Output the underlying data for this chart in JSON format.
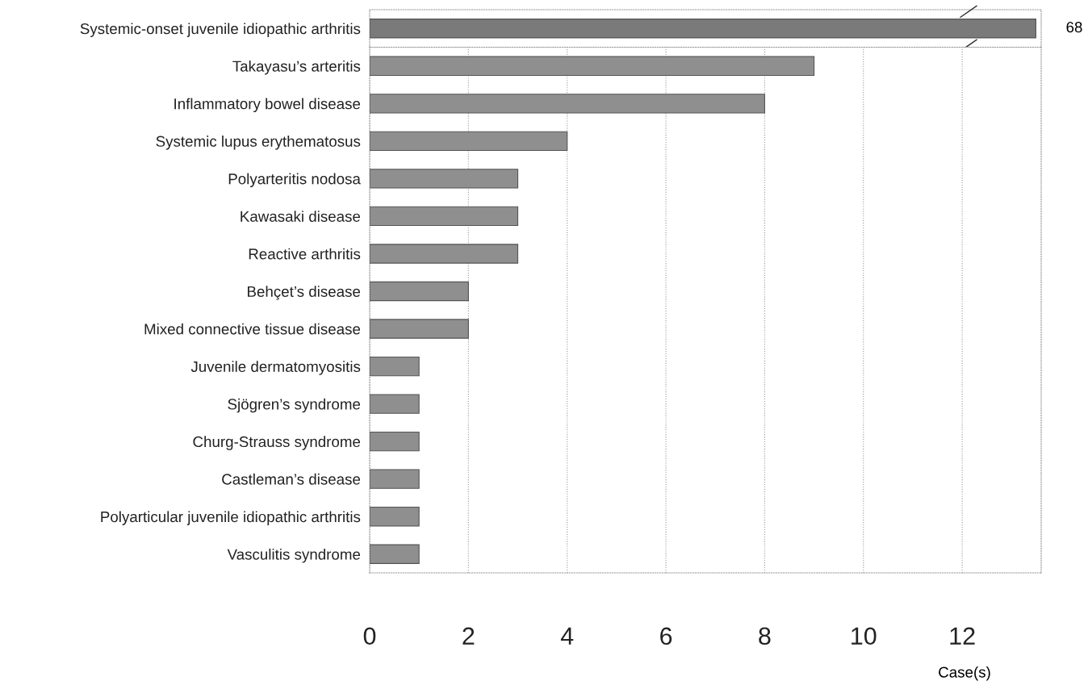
{
  "chart_data": [
    {
      "type": "bar",
      "orientation": "horizontal",
      "categories": [
        "Systemic-onset juvenile idiopathic arthritis"
      ],
      "values": [
        68
      ],
      "value_labels": [
        "68"
      ],
      "colors": [
        "#7a7a7a"
      ],
      "tick_labels": "y"
    },
    {
      "type": "bar",
      "orientation": "horizontal",
      "xlabel": "Case(s)",
      "categories": [
        "Takayasu’s arteritis",
        "Inflammatory bowel disease",
        "Systemic lupus erythematosus",
        "Polyarteritis nodosa",
        "Kawasaki disease",
        "Reactive arthritis",
        "Behçet’s disease",
        "Mixed connective tissue disease",
        "Juvenile dermatomyositis",
        "Sjögren’s syndrome",
        "Churg-Strauss syndrome",
        "Castleman’s disease",
        "Polyarticular juvenile idiopathic arthritis",
        "Vasculitis syndrome"
      ],
      "values": [
        9,
        8,
        4,
        3,
        3,
        3,
        2,
        2,
        1,
        1,
        1,
        1,
        1,
        1
      ],
      "colors": [
        "#8f8f8f",
        "#8f8f8f",
        "#8f8f8f",
        "#8f8f8f",
        "#8f8f8f",
        "#8f8f8f",
        "#8f8f8f",
        "#8f8f8f",
        "#8f8f8f",
        "#8f8f8f",
        "#8f8f8f",
        "#8f8f8f",
        "#8f8f8f",
        "#8f8f8f"
      ],
      "xlim": [
        0,
        13.6
      ],
      "xticks": [
        0,
        2,
        4,
        6,
        8,
        10,
        12
      ],
      "grid": "x"
    }
  ]
}
